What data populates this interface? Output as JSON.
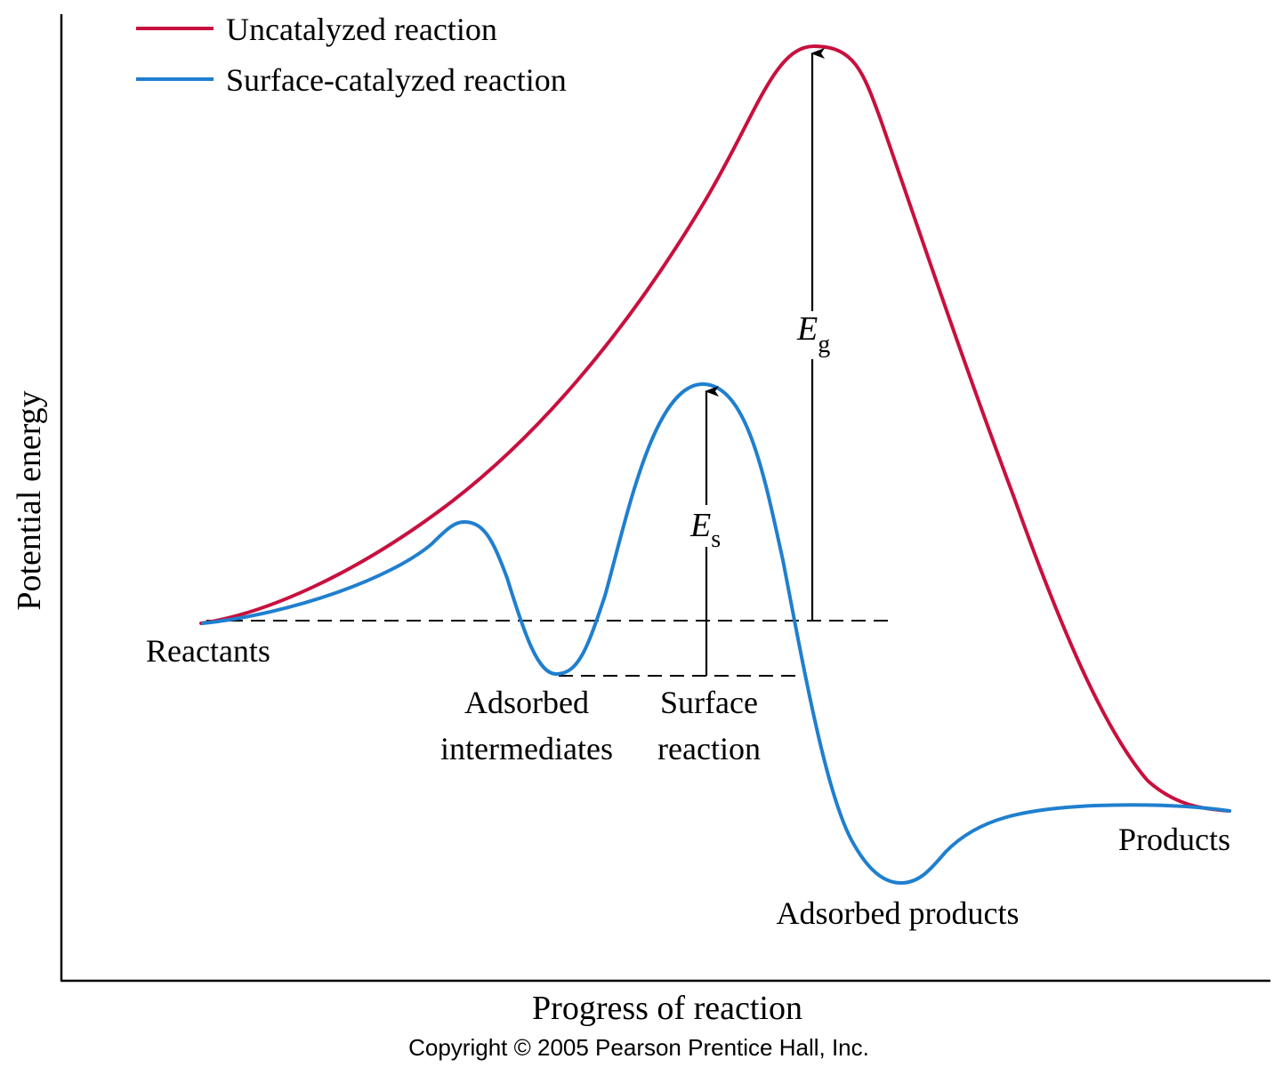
{
  "legend": {
    "items": [
      {
        "label": "Uncatalyzed reaction",
        "color": "#c8103e"
      },
      {
        "label": "Surface-catalyzed reaction",
        "color": "#1f7fcf"
      }
    ]
  },
  "axes": {
    "x_label": "Progress of reaction",
    "y_label": "Potential energy"
  },
  "annotations": {
    "reactants": "Reactants",
    "adsorbed_intermediates_line1": "Adsorbed",
    "adsorbed_intermediates_line2": "intermediates",
    "surface_reaction_line1": "Surface",
    "surface_reaction_line2": "reaction",
    "products": "Products",
    "adsorbed_products": "Adsorbed products",
    "eg_symbol": "E",
    "eg_subscript": "g",
    "es_symbol": "E",
    "es_subscript": "s"
  },
  "copyright": "Copyright © 2005 Pearson Prentice Hall, Inc.",
  "colors": {
    "uncatalyzed": "#c8103e",
    "catalyzed": "#1f7fcf",
    "ink": "#000000"
  }
}
